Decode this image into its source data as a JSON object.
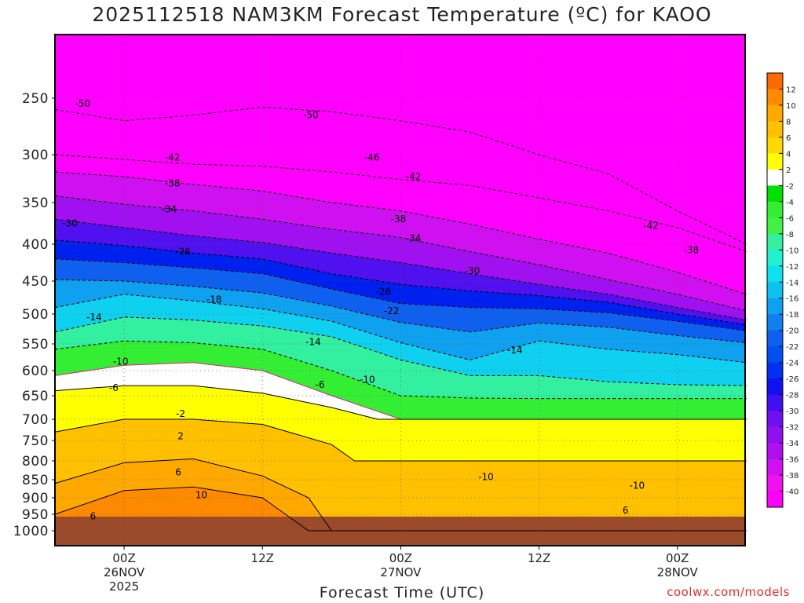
{
  "title": "2025112518 NAM3KM Forecast Temperature (ºC) for KAOO",
  "xaxis_title": "Forecast Time (UTC)",
  "credit": "coolwx.com/models",
  "colors": {
    "ground": "#9b4a2a",
    "frame": "#000000",
    "freezing_line": "#e0207a"
  },
  "chart_data": {
    "type": "heatmap",
    "model": "NAM3KM",
    "run": "2025112518",
    "station": "KAOO",
    "variable": "Temperature",
    "units": "ºC",
    "y_axis": {
      "scale": "pressure (hPa), decreasing upward",
      "ticks": [
        250,
        300,
        350,
        400,
        450,
        500,
        550,
        600,
        650,
        700,
        750,
        800,
        850,
        900,
        950,
        1000
      ]
    },
    "x_axis": {
      "range_hours_from_run": [
        0,
        60
      ],
      "ticks": [
        {
          "label": "00Z",
          "date": "26NOV",
          "year": "2025",
          "hour": 6
        },
        {
          "label": "12Z",
          "date": "",
          "year": "",
          "hour": 18
        },
        {
          "label": "00Z",
          "date": "27NOV",
          "year": "",
          "hour": 30
        },
        {
          "label": "12Z",
          "date": "",
          "year": "",
          "hour": 42
        },
        {
          "label": "00Z",
          "date": "28NOV",
          "year": "",
          "hour": 54
        }
      ]
    },
    "colorbar": {
      "levels": [
        12,
        10,
        8,
        6,
        4,
        2,
        -2,
        -4,
        -6,
        -8,
        -10,
        -12,
        -14,
        -16,
        -18,
        -20,
        -22,
        -24,
        -26,
        -28,
        -30,
        -32,
        -34,
        -36,
        -38,
        -40
      ],
      "colors": [
        "#ff6a00",
        "#ff8a00",
        "#ffa800",
        "#ffc000",
        "#ffd800",
        "#ffff00",
        "#ffffff",
        "#00e000",
        "#33ee33",
        "#44f044",
        "#33f0a0",
        "#22f0d0",
        "#10e0f0",
        "#10c0f0",
        "#10a0f0",
        "#1080f0",
        "#1060f0",
        "#0050f0",
        "#0030f0",
        "#1010f0",
        "#4010f0",
        "#7010f0",
        "#9010f0",
        "#b010f0",
        "#d010f0",
        "#f010f0",
        "#ff00ff"
      ]
    },
    "contour_labels": [
      {
        "value": "-50",
        "hour": 2.4,
        "p": 255
      },
      {
        "value": "-50",
        "hour": 22.2,
        "p": 265
      },
      {
        "value": "-46",
        "hour": 27.5,
        "p": 303
      },
      {
        "value": "-42",
        "hour": 10.2,
        "p": 303
      },
      {
        "value": "-42",
        "hour": 31.1,
        "p": 323
      },
      {
        "value": "-42",
        "hour": 51.7,
        "p": 378
      },
      {
        "value": "-38",
        "hour": 10.2,
        "p": 330
      },
      {
        "value": "-38",
        "hour": 29.8,
        "p": 370
      },
      {
        "value": "-38",
        "hour": 55.2,
        "p": 408
      },
      {
        "value": "-34",
        "hour": 9.9,
        "p": 358
      },
      {
        "value": "-34",
        "hour": 31.1,
        "p": 393
      },
      {
        "value": "-30",
        "hour": 1.3,
        "p": 375
      },
      {
        "value": "-30",
        "hour": 36.2,
        "p": 436
      },
      {
        "value": "-26",
        "hour": 11.1,
        "p": 410
      },
      {
        "value": "-26",
        "hour": 28.5,
        "p": 466
      },
      {
        "value": "-22",
        "hour": 29.2,
        "p": 495
      },
      {
        "value": "-18",
        "hour": 13.8,
        "p": 478
      },
      {
        "value": "-14",
        "hour": 3.4,
        "p": 505
      },
      {
        "value": "-14",
        "hour": 22.4,
        "p": 547
      },
      {
        "value": "-14",
        "hour": 39.9,
        "p": 562
      },
      {
        "value": "-10",
        "hour": 5.7,
        "p": 583
      },
      {
        "value": "-10",
        "hour": 27.1,
        "p": 618
      },
      {
        "value": "-10",
        "hour": 37.4,
        "p": 843
      },
      {
        "value": "-10",
        "hour": 50.5,
        "p": 866
      },
      {
        "value": "-6",
        "hour": 5.1,
        "p": 634
      },
      {
        "value": "-6",
        "hour": 23.0,
        "p": 628
      },
      {
        "value": "-2",
        "hour": 10.9,
        "p": 688
      },
      {
        "value": "2",
        "hour": 10.9,
        "p": 740
      },
      {
        "value": "6",
        "hour": 10.7,
        "p": 830
      },
      {
        "value": "6",
        "hour": 49.5,
        "p": 938
      },
      {
        "value": "6",
        "hour": 3.3,
        "p": 956
      },
      {
        "value": "10",
        "hour": 12.7,
        "p": 892
      }
    ]
  }
}
